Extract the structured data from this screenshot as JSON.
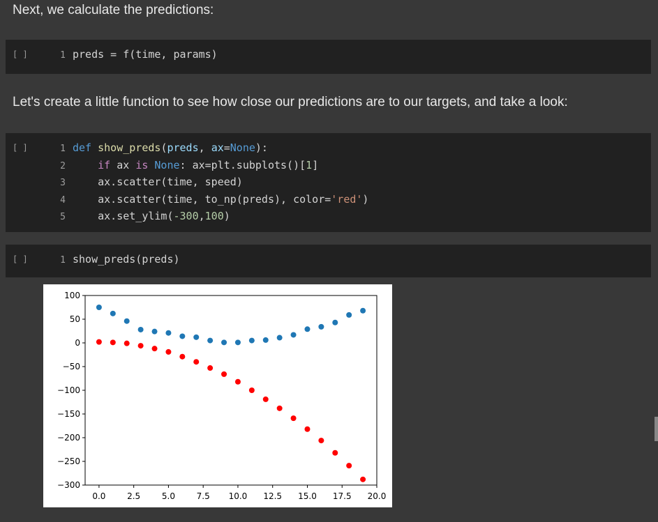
{
  "markdown": {
    "p1": "Next, we calculate the predictions:",
    "p2": "Let's create a little function to see how close our predictions are to our targets, and take a look:"
  },
  "cells": {
    "bracket": "[ ]",
    "c1": {
      "line1": {
        "n": "1",
        "text": "preds = f(time, params)"
      }
    },
    "c2": {
      "lines": [
        {
          "n": "1"
        },
        {
          "n": "2"
        },
        {
          "n": "3"
        },
        {
          "n": "4"
        },
        {
          "n": "5"
        }
      ],
      "l1": {
        "a": "def",
        "b": "show_preds",
        "c": "(",
        "d": "preds",
        "e": ", ",
        "f": "ax",
        "g": "=",
        "h": "None",
        "i": "):"
      },
      "l2": {
        "a": "if",
        "b": " ax ",
        "c": "is",
        "d": " ",
        "e": "None",
        "f": ": ax=plt.subplots()[",
        "g": "1",
        "h": "]"
      },
      "l3": {
        "a": "ax.scatter(time, speed)"
      },
      "l4": {
        "a": "ax.scatter(time, to_np(preds), color=",
        "b": "'red'",
        "c": ")"
      },
      "l5": {
        "a": "ax.set_ylim(",
        "b": "-300",
        "c": ",",
        "d": "100",
        "e": ")"
      }
    },
    "c3": {
      "line1": {
        "n": "1",
        "text": "show_preds(preds)"
      }
    }
  },
  "chart_data": {
    "type": "scatter",
    "xlim": [
      -1,
      20
    ],
    "ylim": [
      -300,
      100
    ],
    "xticks": [
      0.0,
      2.5,
      5.0,
      7.5,
      10.0,
      12.5,
      15.0,
      17.5,
      20.0
    ],
    "xtick_labels": [
      "0.0",
      "2.5",
      "5.0",
      "7.5",
      "10.0",
      "12.5",
      "15.0",
      "17.5",
      "20.0"
    ],
    "yticks": [
      100,
      50,
      0,
      -50,
      -100,
      -150,
      -200,
      -250,
      -300
    ],
    "ytick_labels": [
      "100",
      "50",
      "0",
      "−50",
      "−100",
      "−150",
      "−200",
      "−250",
      "−300"
    ],
    "series": [
      {
        "color": "#1f77b4",
        "x": [
          0,
          1,
          2,
          3,
          4,
          5,
          6,
          7,
          8,
          9,
          10,
          11,
          12,
          13,
          14,
          15,
          16,
          17,
          18,
          19
        ],
        "y": [
          75,
          62,
          46,
          28,
          24,
          21,
          14,
          12,
          5,
          1,
          1,
          5,
          6,
          11,
          17,
          29,
          34,
          43,
          59,
          68
        ]
      },
      {
        "color": "#ff0000",
        "x": [
          0,
          1,
          2,
          3,
          4,
          5,
          6,
          7,
          8,
          9,
          10,
          11,
          12,
          13,
          14,
          15,
          16,
          17,
          18,
          19
        ],
        "y": [
          2,
          1,
          -1,
          -6,
          -12,
          -19,
          -29,
          -40,
          -53,
          -66,
          -82,
          -100,
          -119,
          -138,
          -159,
          -182,
          -206,
          -232,
          -259,
          -288
        ]
      }
    ]
  }
}
